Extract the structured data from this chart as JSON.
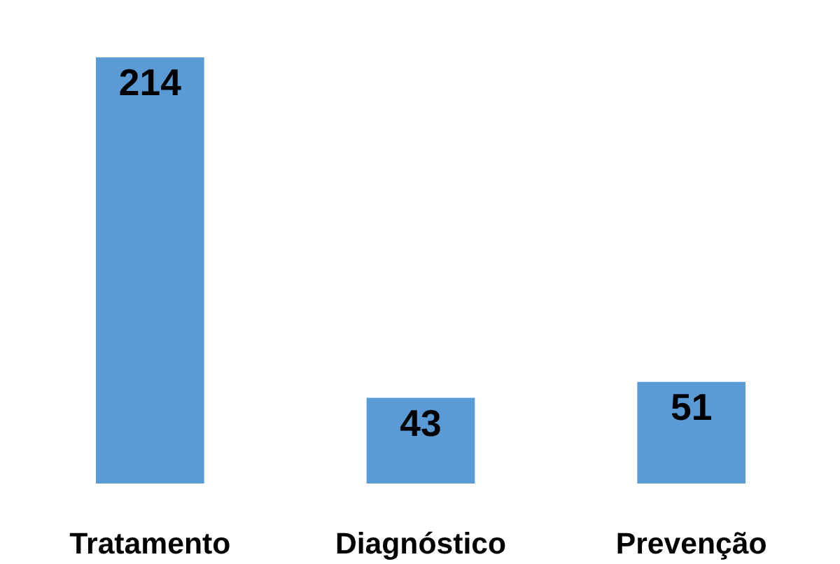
{
  "chart_data": {
    "type": "bar",
    "categories": [
      "Tratamento",
      "Diagnóstico",
      "Prevenção"
    ],
    "values": [
      214,
      43,
      51
    ],
    "color": "#5b9bd5",
    "data_labels": true
  }
}
